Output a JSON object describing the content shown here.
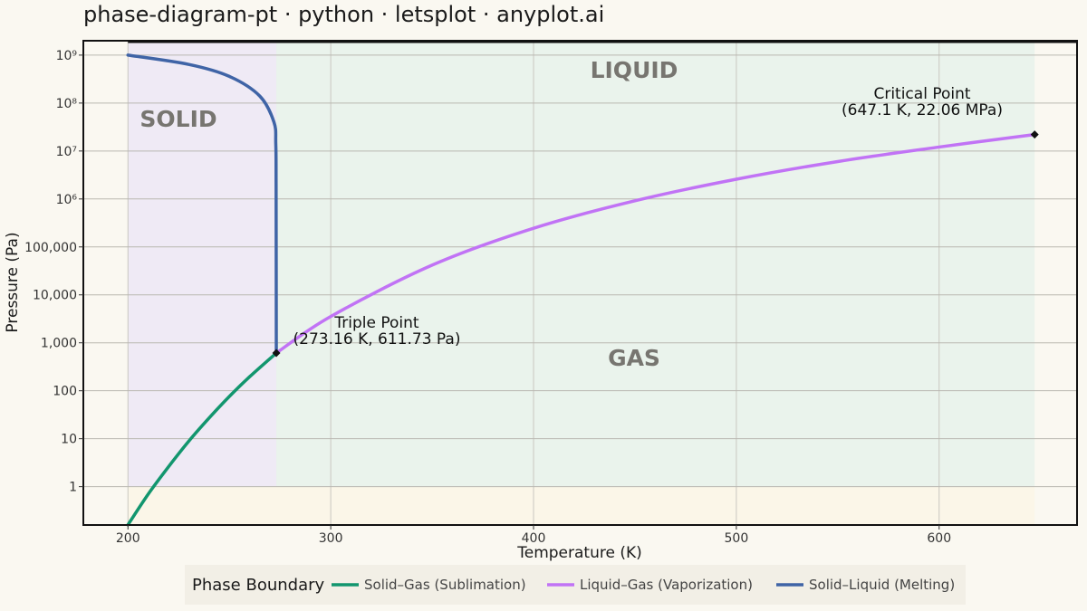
{
  "chart_data": {
    "type": "line",
    "title": "phase-diagram-pt · python · letsplot · anyplot.ai",
    "xlabel": "Temperature (K)",
    "ylabel": "Pressure (Pa)",
    "xlim": [
      178,
      668
    ],
    "ylim_log10": [
      -0.8,
      9.3
    ],
    "y_scale": "log",
    "x_ticks": [
      200,
      300,
      400,
      500,
      600
    ],
    "x_tick_labels": [
      "200",
      "300",
      "400",
      "500",
      "600"
    ],
    "y_ticks": [
      0,
      1,
      2,
      3,
      4,
      5,
      6,
      7,
      8,
      9
    ],
    "y_tick_labels": [
      "1",
      "10",
      "100",
      "1,000",
      "10,000",
      "100,000",
      "10⁶",
      "10⁷",
      "10⁸",
      "10⁹"
    ],
    "grid": true,
    "regions": [
      {
        "label": "SOLID",
        "x": [
          200,
          273.16
        ],
        "color": "#EDE8F5"
      },
      {
        "label": "LIQUID",
        "x": [
          273.16,
          647.1
        ],
        "color": "#E4F1EA"
      },
      {
        "label": "GAS",
        "x": [
          273.16,
          647.1
        ],
        "color": "#E4F1EA"
      }
    ],
    "series": [
      {
        "name": "Solid–Gas (Sublimation)",
        "color": "#12966E",
        "points": [
          [
            200,
            0.16
          ],
          [
            210,
            0.7
          ],
          [
            220,
            2.6
          ],
          [
            230,
            8.9
          ],
          [
            240,
            27
          ],
          [
            250,
            76
          ],
          [
            260,
            196
          ],
          [
            273.16,
            611.73
          ]
        ]
      },
      {
        "name": "Liquid–Gas (Vaporization)",
        "color": "#C173F5",
        "points": [
          [
            273.16,
            611.73
          ],
          [
            300,
            3540
          ],
          [
            350,
            41700
          ],
          [
            400,
            245000
          ],
          [
            450,
            915000
          ],
          [
            500,
            2580000
          ],
          [
            550,
            6030000
          ],
          [
            600,
            12100000
          ],
          [
            647.1,
            22060000
          ]
        ]
      },
      {
        "name": "Solid–Liquid (Melting)",
        "color": "#3F64A6",
        "points": [
          [
            273.16,
            611.73
          ],
          [
            273.05,
            2000000
          ],
          [
            272.9,
            14000000
          ],
          [
            272,
            40000000
          ],
          [
            265,
            140000000
          ],
          [
            250,
            360000000
          ],
          [
            230,
            640000000
          ],
          [
            200,
            1000000000
          ]
        ]
      }
    ],
    "points": [
      {
        "name": "Triple Point",
        "x": 273.16,
        "y": 611.73,
        "label": "Triple Point",
        "sublabel": "(273.16 K, 611.73 Pa)"
      },
      {
        "name": "Critical Point",
        "x": 647.1,
        "y": 22060000,
        "label": "Critical Point",
        "sublabel": "(647.1 K, 22.06 MPa)"
      }
    ],
    "legend": {
      "title": "Phase Boundary",
      "position": "bottom",
      "items": [
        {
          "label": "Solid–Gas (Sublimation)",
          "color": "#12966E"
        },
        {
          "label": "Liquid–Gas (Vaporization)",
          "color": "#C173F5"
        },
        {
          "label": "Solid–Liquid (Melting)",
          "color": "#3F64A6"
        }
      ]
    }
  }
}
